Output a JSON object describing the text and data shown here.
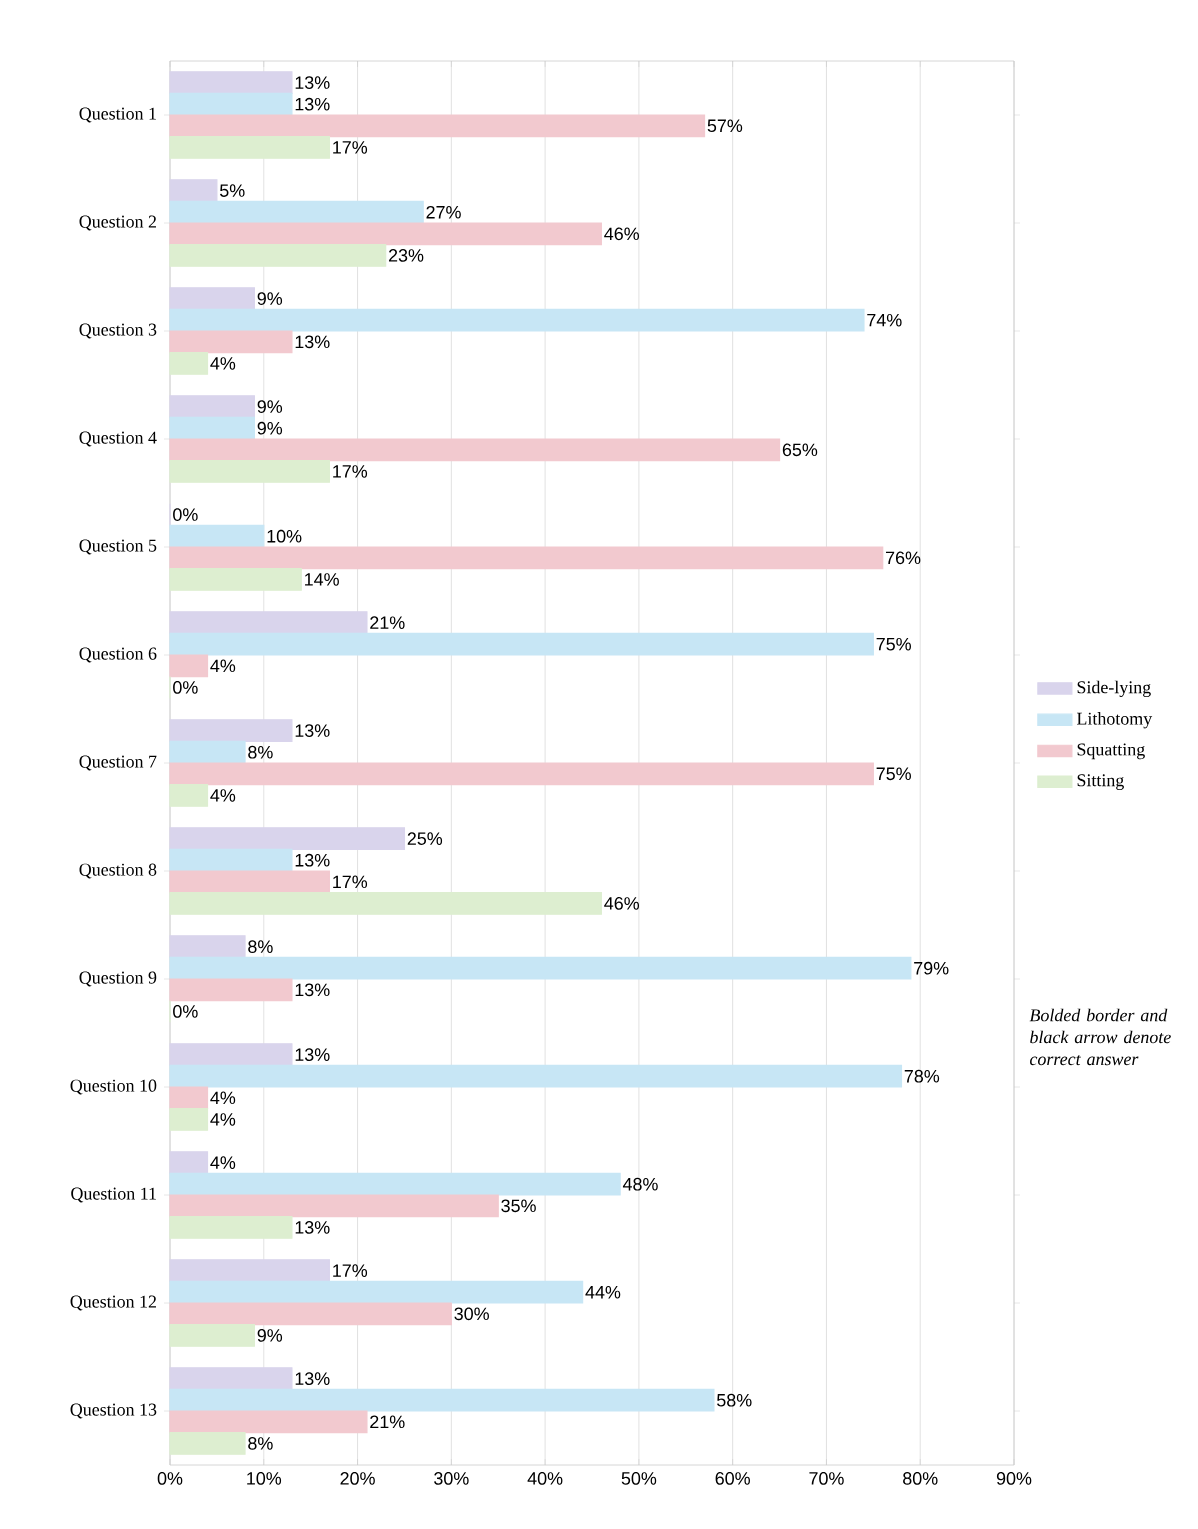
{
  "chart_data": {
    "type": "bar",
    "orientation": "horizontal",
    "categories": [
      "Question 1",
      "Question 2",
      "Question 3",
      "Question 4",
      "Question 5",
      "Question 6",
      "Question 7",
      "Question 8",
      "Question 9",
      "Question 10",
      "Question 11",
      "Question 12",
      "Question 13"
    ],
    "series": [
      {
        "name": "Side-lying",
        "color": "#d9d4ec",
        "values": [
          13,
          5,
          9,
          9,
          0,
          21,
          13,
          25,
          8,
          13,
          4,
          17,
          13
        ],
        "value_labels": [
          "13%",
          "5%",
          "9%",
          "9%",
          "0%",
          "21%",
          "13%",
          "25%",
          "8%",
          "13%",
          "4%",
          "17%",
          "13%"
        ]
      },
      {
        "name": "Lithotomy",
        "color": "#c7e6f5",
        "values": [
          13,
          27,
          74,
          9,
          10,
          75,
          8,
          13,
          79,
          78,
          48,
          44,
          58
        ],
        "value_labels": [
          "13%",
          "27%",
          "74%",
          "9%",
          "10%",
          "75%",
          "8%",
          "13%",
          "79%",
          "78%",
          "48%",
          "44%",
          "58%"
        ]
      },
      {
        "name": "Squatting",
        "color": "#f2c9cf",
        "values": [
          57,
          46,
          13,
          65,
          76,
          4,
          75,
          17,
          13,
          4,
          35,
          30,
          21
        ],
        "value_labels": [
          "57%",
          "46%",
          "13%",
          "65%",
          "76%",
          "4%",
          "75%",
          "17%",
          "13%",
          "4%",
          "35%",
          "30%",
          "21%"
        ]
      },
      {
        "name": "Sitting",
        "color": "#ddeed0",
        "values": [
          17,
          23,
          4,
          17,
          14,
          0,
          4,
          46,
          0,
          4,
          13,
          9,
          8
        ],
        "value_labels": [
          "17%",
          "23%",
          "4%",
          "17%",
          "14%",
          "0%",
          "4%",
          "46%",
          "0%",
          "4%",
          "13%",
          "9%",
          "8%"
        ]
      }
    ],
    "xlim": [
      0,
      90
    ],
    "xticks": [
      {
        "value": 0,
        "label": "0%"
      },
      {
        "value": 10,
        "label": "10%"
      },
      {
        "value": 20,
        "label": "20%"
      },
      {
        "value": 30,
        "label": "30%"
      },
      {
        "value": 40,
        "label": "40%"
      },
      {
        "value": 50,
        "label": "50%"
      },
      {
        "value": 60,
        "label": "60%"
      },
      {
        "value": 70,
        "label": "70%"
      },
      {
        "value": 80,
        "label": "80%"
      },
      {
        "value": 90,
        "label": "90%"
      }
    ],
    "grid": "x",
    "legend": "right",
    "annotations": [
      "*Bolded border and black arrow denote correct answer*"
    ]
  }
}
